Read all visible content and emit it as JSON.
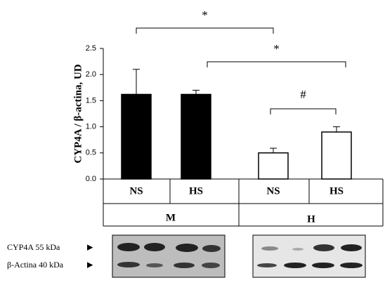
{
  "chart_data": {
    "type": "bar",
    "y_label": "CYP4A   / β-actina, UD",
    "categories": [
      "NS",
      "HS",
      "NS",
      "HS"
    ],
    "groups": [
      "M",
      "H"
    ],
    "values": [
      1.62,
      1.62,
      0.5,
      0.9
    ],
    "errors": [
      0.48,
      0.08,
      0.09,
      0.1
    ],
    "colors": [
      "#000000",
      "#000000",
      "#ffffff",
      "#ffffff"
    ],
    "ylim": [
      0,
      2.5
    ],
    "yticks": [
      {
        "value": 0,
        "label": "0.0"
      },
      {
        "value": 0.5,
        "label": "0.5"
      },
      {
        "value": 1,
        "label": "1.0"
      },
      {
        "value": 1.5,
        "label": "1.5"
      },
      {
        "value": 2,
        "label": "2.0"
      },
      {
        "value": 2.5,
        "label": "2.5"
      }
    ],
    "annotations": [
      "*",
      "*",
      "#"
    ]
  },
  "blot": {
    "labels": [
      "CYP4A 55 kDa",
      "β-Actina 40 kDa"
    ]
  }
}
